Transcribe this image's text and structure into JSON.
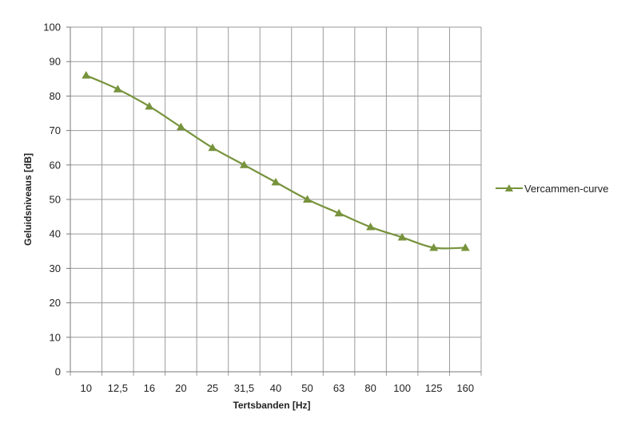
{
  "chart_data": {
    "type": "line",
    "xlabel": "Tertsbanden [Hz]",
    "ylabel": "Geluidsniveaus [dB]",
    "ylim": [
      0,
      100
    ],
    "yticks": [
      0,
      10,
      20,
      30,
      40,
      50,
      60,
      70,
      80,
      90,
      100
    ],
    "categories": [
      "10",
      "12,5",
      "16",
      "20",
      "25",
      "31,5",
      "40",
      "50",
      "63",
      "80",
      "100",
      "125",
      "160"
    ],
    "series": [
      {
        "name": "Vercammen-curve",
        "values": [
          86,
          82,
          77,
          71,
          65,
          60,
          55,
          50,
          46,
          42,
          39,
          36,
          36
        ],
        "color": "#77933c",
        "marker": "triangle"
      }
    ],
    "grid": true,
    "legend_position": "right"
  }
}
